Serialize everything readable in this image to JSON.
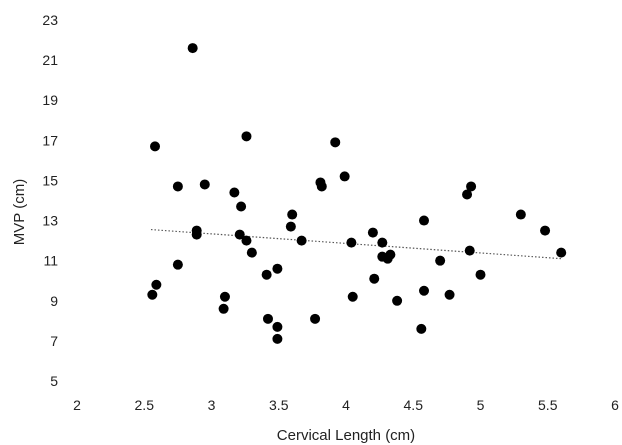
{
  "chart_data": {
    "type": "scatter",
    "title": "",
    "xlabel": "Cervical Length (cm)",
    "ylabel": "MVP (cm)",
    "xlim": [
      2,
      6
    ],
    "ylim": [
      5,
      23
    ],
    "xticks": [
      2,
      2.5,
      3,
      3.5,
      4,
      4.5,
      5,
      5.5,
      6
    ],
    "xtick_labels": [
      "2",
      "2.5",
      "3",
      "3.5",
      "4",
      "4.5",
      "5",
      "5.5",
      "6"
    ],
    "yticks": [
      5,
      7,
      9,
      11,
      13,
      15,
      17,
      19,
      21,
      23
    ],
    "ytick_labels": [
      "5",
      "7",
      "9",
      "11",
      "13",
      "15",
      "17",
      "19",
      "21",
      "23"
    ],
    "grid": false,
    "legend": "none",
    "marker_color": "#000000",
    "trendline": {
      "style": "dotted",
      "color": "#555555",
      "start": [
        2.55,
        12.55
      ],
      "end": [
        5.6,
        11.1
      ]
    },
    "points": [
      [
        2.58,
        16.7
      ],
      [
        2.56,
        9.3
      ],
      [
        2.59,
        9.8
      ],
      [
        2.75,
        14.7
      ],
      [
        2.75,
        10.8
      ],
      [
        2.86,
        21.6
      ],
      [
        2.89,
        12.5
      ],
      [
        2.89,
        12.3
      ],
      [
        2.95,
        14.8
      ],
      [
        3.1,
        9.2
      ],
      [
        3.09,
        8.6
      ],
      [
        3.17,
        14.4
      ],
      [
        3.21,
        12.3
      ],
      [
        3.22,
        13.7
      ],
      [
        3.26,
        17.2
      ],
      [
        3.26,
        12.0
      ],
      [
        3.3,
        11.4
      ],
      [
        3.41,
        10.3
      ],
      [
        3.42,
        8.1
      ],
      [
        3.49,
        10.6
      ],
      [
        3.49,
        7.7
      ],
      [
        3.49,
        7.1
      ],
      [
        3.6,
        13.3
      ],
      [
        3.59,
        12.7
      ],
      [
        3.67,
        12.0
      ],
      [
        3.77,
        8.1
      ],
      [
        3.81,
        14.9
      ],
      [
        3.82,
        14.7
      ],
      [
        3.92,
        16.9
      ],
      [
        3.99,
        15.2
      ],
      [
        4.04,
        11.9
      ],
      [
        4.05,
        9.2
      ],
      [
        4.2,
        12.4
      ],
      [
        4.21,
        10.1
      ],
      [
        4.27,
        11.2
      ],
      [
        4.27,
        11.9
      ],
      [
        4.31,
        11.1
      ],
      [
        4.33,
        11.3
      ],
      [
        4.38,
        9.0
      ],
      [
        4.56,
        7.6
      ],
      [
        4.58,
        13.0
      ],
      [
        4.58,
        9.5
      ],
      [
        4.7,
        11.0
      ],
      [
        4.77,
        9.3
      ],
      [
        4.9,
        14.3
      ],
      [
        4.93,
        14.7
      ],
      [
        4.92,
        11.5
      ],
      [
        5.0,
        10.3
      ],
      [
        5.3,
        13.3
      ],
      [
        5.48,
        12.5
      ],
      [
        5.6,
        11.4
      ]
    ]
  }
}
